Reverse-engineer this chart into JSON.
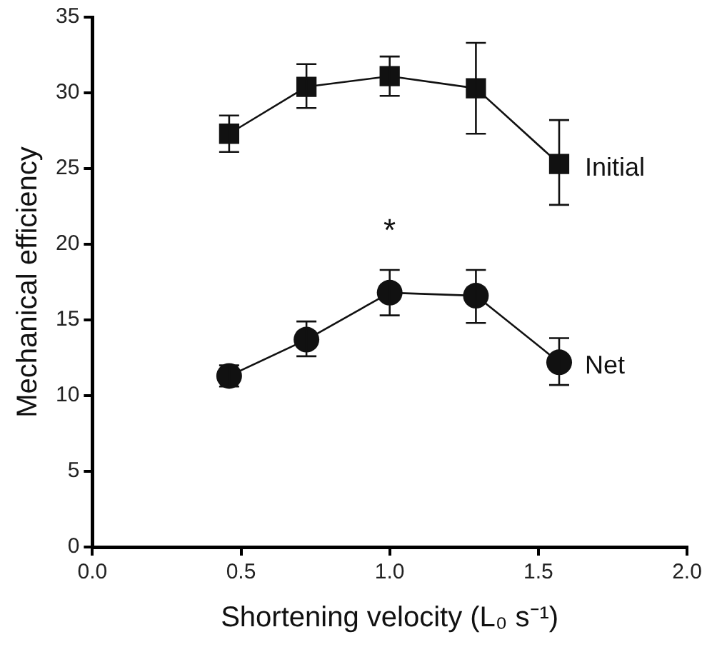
{
  "chart_data": {
    "type": "line",
    "xlabel": "Shortening velocity (L₀ s⁻¹)",
    "ylabel": "Mechanical efficiency",
    "x": [
      0.46,
      0.72,
      1.0,
      1.29,
      1.57
    ],
    "series": [
      {
        "name": "Initial",
        "color": "#111111",
        "marker": "square",
        "values": [
          27.3,
          30.4,
          31.1,
          30.3,
          25.3
        ],
        "errors": [
          [
            26.1,
            28.5
          ],
          [
            29.0,
            31.9
          ],
          [
            29.8,
            32.4
          ],
          [
            27.3,
            33.3
          ],
          [
            22.6,
            28.2
          ]
        ]
      },
      {
        "name": "Net",
        "color": "#111111",
        "marker": "circle",
        "values": [
          11.3,
          13.7,
          16.8,
          16.6,
          12.2
        ],
        "errors": [
          [
            10.6,
            12.0
          ],
          [
            12.6,
            14.9
          ],
          [
            15.3,
            18.3
          ],
          [
            14.8,
            18.3
          ],
          [
            10.7,
            13.8
          ]
        ]
      }
    ],
    "xlim": [
      0,
      2
    ],
    "xticks": [
      {
        "value": 0,
        "label": "0.0"
      },
      {
        "value": 0.5,
        "label": "0.5"
      },
      {
        "value": 1,
        "label": "1.0"
      },
      {
        "value": 1.5,
        "label": "1.5"
      },
      {
        "value": 2,
        "label": "2.0"
      }
    ],
    "ylim": [
      0,
      35
    ],
    "yticks": [
      0,
      5,
      10,
      15,
      20,
      25,
      30,
      35
    ],
    "grid": false,
    "legend": false,
    "line_style": "solid",
    "annotations": [
      "*"
    ]
  }
}
